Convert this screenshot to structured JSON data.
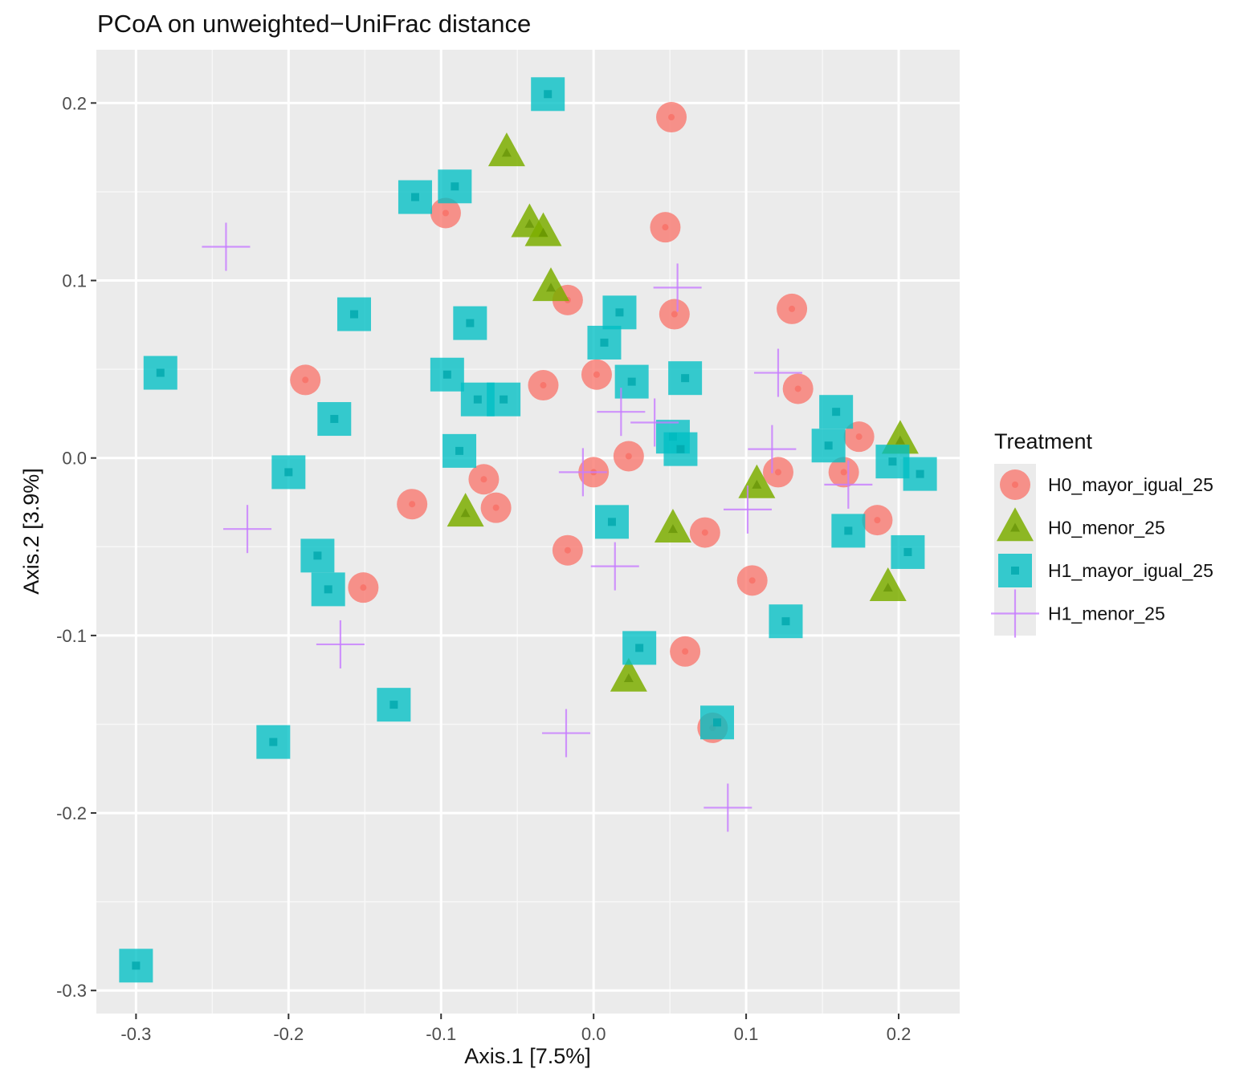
{
  "chart_data": {
    "type": "scatter",
    "title": "PCoA on unweighted−UniFrac distance",
    "xlabel": "Axis.1   [7.5%]",
    "ylabel": "Axis.2   [3.9%]",
    "xlim": [
      -0.326,
      0.24
    ],
    "ylim": [
      -0.313,
      0.23
    ],
    "x_ticks": [
      -0.3,
      -0.2,
      -0.1,
      0.0,
      0.1,
      0.2
    ],
    "x_tick_labels": [
      "-0.3",
      "-0.2",
      "-0.1",
      "0.0",
      "0.1",
      "0.2"
    ],
    "y_ticks": [
      0.2,
      0.1,
      0.0,
      -0.1,
      -0.2,
      -0.3
    ],
    "y_tick_labels": [
      "0.2",
      "0.1",
      "0.0",
      "-0.1",
      "-0.2",
      "-0.3"
    ],
    "grid": true,
    "legend": {
      "title": "Treatment",
      "position": "right"
    },
    "series": [
      {
        "name": "H0_mayor_igual_25",
        "shape": "circle",
        "color": "#F8766D",
        "points": [
          [
            0.051,
            0.192
          ],
          [
            0.047,
            0.13
          ],
          [
            -0.097,
            0.138
          ],
          [
            -0.017,
            0.089
          ],
          [
            0.053,
            0.081
          ],
          [
            0.13,
            0.084
          ],
          [
            -0.189,
            0.044
          ],
          [
            -0.033,
            0.041
          ],
          [
            0.002,
            0.047
          ],
          [
            0.134,
            0.039
          ],
          [
            0.174,
            0.012
          ],
          [
            0.023,
            0.001
          ],
          [
            0.121,
            -0.008
          ],
          [
            0.164,
            -0.008
          ],
          [
            0.0,
            -0.008
          ],
          [
            -0.072,
            -0.012
          ],
          [
            -0.064,
            -0.028
          ],
          [
            -0.119,
            -0.026
          ],
          [
            0.073,
            -0.042
          ],
          [
            0.186,
            -0.035
          ],
          [
            -0.017,
            -0.052
          ],
          [
            0.104,
            -0.069
          ],
          [
            -0.151,
            -0.073
          ],
          [
            0.06,
            -0.109
          ],
          [
            0.078,
            -0.152
          ]
        ]
      },
      {
        "name": "H0_menor_25",
        "shape": "triangle",
        "color": "#7CAE00",
        "points": [
          [
            -0.057,
            0.172
          ],
          [
            -0.042,
            0.132
          ],
          [
            -0.033,
            0.127
          ],
          [
            -0.028,
            0.096
          ],
          [
            -0.084,
            -0.031
          ],
          [
            0.052,
            -0.04
          ],
          [
            0.107,
            -0.015
          ],
          [
            0.201,
            0.01
          ],
          [
            0.193,
            -0.073
          ],
          [
            0.023,
            -0.124
          ]
        ]
      },
      {
        "name": "H1_mayor_igual_25",
        "shape": "square",
        "color": "#00BFC4",
        "points": [
          [
            -0.03,
            0.205
          ],
          [
            -0.117,
            0.147
          ],
          [
            -0.091,
            0.153
          ],
          [
            -0.157,
            0.081
          ],
          [
            -0.081,
            0.076
          ],
          [
            0.017,
            0.082
          ],
          [
            0.007,
            0.065
          ],
          [
            -0.284,
            0.048
          ],
          [
            -0.096,
            0.047
          ],
          [
            -0.076,
            0.033
          ],
          [
            -0.059,
            0.033
          ],
          [
            0.025,
            0.043
          ],
          [
            0.06,
            0.045
          ],
          [
            -0.17,
            0.022
          ],
          [
            0.159,
            0.026
          ],
          [
            0.052,
            0.012
          ],
          [
            0.057,
            0.005
          ],
          [
            0.154,
            0.007
          ],
          [
            -0.088,
            0.004
          ],
          [
            0.196,
            -0.002
          ],
          [
            0.214,
            -0.009
          ],
          [
            -0.2,
            -0.008
          ],
          [
            0.012,
            -0.036
          ],
          [
            0.167,
            -0.041
          ],
          [
            0.206,
            -0.053
          ],
          [
            -0.181,
            -0.055
          ],
          [
            -0.174,
            -0.074
          ],
          [
            0.126,
            -0.092
          ],
          [
            0.03,
            -0.107
          ],
          [
            -0.131,
            -0.139
          ],
          [
            0.081,
            -0.149
          ],
          [
            -0.21,
            -0.16
          ],
          [
            -0.3,
            -0.286
          ]
        ]
      },
      {
        "name": "H1_menor_25",
        "shape": "cross",
        "color": "#C77CFF",
        "points": [
          [
            -0.241,
            0.119
          ],
          [
            0.055,
            0.096
          ],
          [
            0.121,
            0.048
          ],
          [
            0.018,
            0.026
          ],
          [
            0.04,
            0.02
          ],
          [
            0.117,
            0.005
          ],
          [
            -0.007,
            -0.008
          ],
          [
            0.167,
            -0.015
          ],
          [
            0.101,
            -0.029
          ],
          [
            -0.227,
            -0.04
          ],
          [
            0.014,
            -0.061
          ],
          [
            -0.166,
            -0.105
          ],
          [
            -0.018,
            -0.155
          ],
          [
            0.088,
            -0.197
          ]
        ]
      }
    ]
  }
}
